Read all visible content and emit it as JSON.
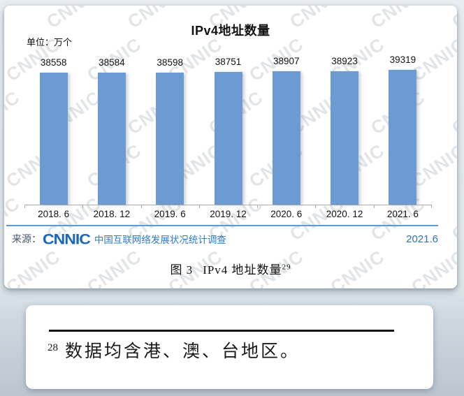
{
  "watermark": {
    "text": "CNNIC"
  },
  "chart": {
    "title": "IPv4地址数量",
    "unit_label": "单位：万个",
    "source_prefix": "来源：",
    "source_logo": "CNNIC",
    "source_text": "中国互联网络发展状况统计调查",
    "source_date": "2021.6",
    "accent_color": "#5B9BD5",
    "bar_color": "#6C9BD3"
  },
  "chart_data": {
    "type": "bar",
    "title": "IPv4地址数量",
    "unit": "万个",
    "categories": [
      "2018. 6",
      "2018. 12",
      "2019. 6",
      "2019. 12",
      "2020. 6",
      "2020. 12",
      "2021. 6"
    ],
    "values": [
      38558,
      38584,
      38598,
      38751,
      38907,
      38923,
      39319
    ],
    "xlabel": "",
    "ylabel": "单位：万个",
    "grid": false,
    "legend": "none",
    "y_axis_shown": false,
    "data_labels": true
  },
  "caption": {
    "figure_label": "图 3",
    "figure_title": "IPv4 地址数量",
    "footnote_ref": "29"
  },
  "footnote": {
    "number": "28",
    "text": "数据均含港、澳、台地区。"
  }
}
